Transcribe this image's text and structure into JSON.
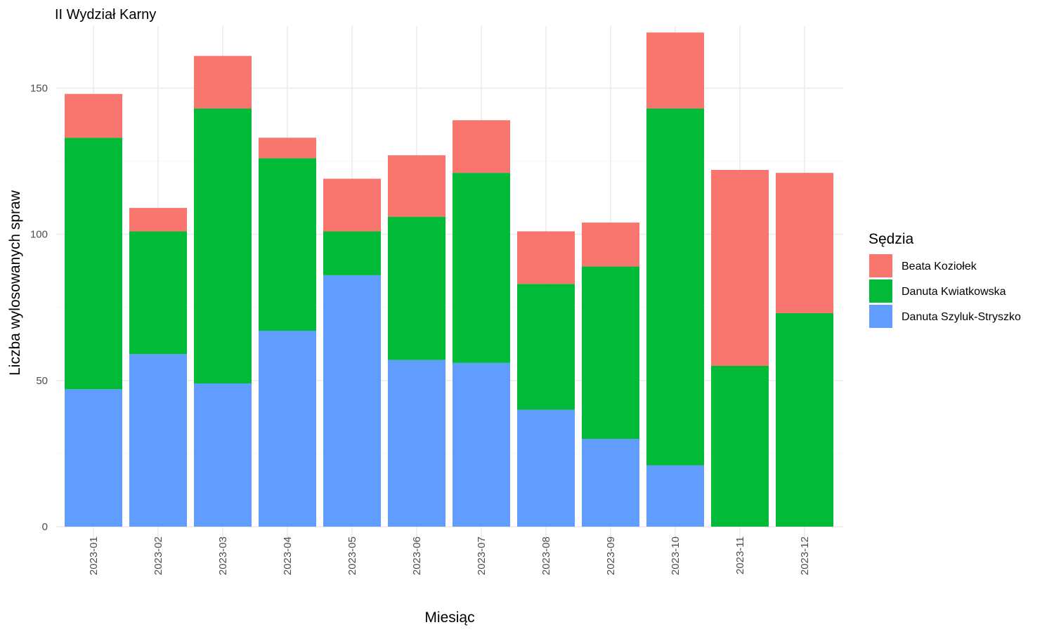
{
  "chart_data": {
    "type": "bar",
    "stacked": true,
    "title": "II Wydział Karny",
    "xlabel": "Miesiąc",
    "ylabel": "Liczba wylosowanych spraw",
    "categories": [
      "2023-01",
      "2023-02",
      "2023-03",
      "2023-04",
      "2023-05",
      "2023-06",
      "2023-07",
      "2023-08",
      "2023-09",
      "2023-10",
      "2023-11",
      "2023-12"
    ],
    "series": [
      {
        "name": "Danuta Szyluk-Stryszko",
        "color": "#619CFF",
        "values": [
          47,
          59,
          49,
          67,
          86,
          57,
          56,
          40,
          30,
          21,
          0,
          0
        ]
      },
      {
        "name": "Danuta Kwiatkowska",
        "color": "#00BA38",
        "values": [
          86,
          42,
          94,
          59,
          15,
          49,
          65,
          43,
          59,
          122,
          55,
          73
        ]
      },
      {
        "name": "Beata Koziołek",
        "color": "#F8766D",
        "values": [
          15,
          8,
          18,
          7,
          18,
          21,
          18,
          18,
          15,
          26,
          67,
          48
        ]
      }
    ],
    "ylim": [
      0,
      170
    ],
    "yticks": [
      0,
      50,
      100,
      150
    ],
    "grid": true,
    "legend": {
      "title": "Sędzia",
      "position": "right",
      "order": [
        "Beata Koziołek",
        "Danuta Kwiatkowska",
        "Danuta Szyluk-Stryszko"
      ]
    }
  }
}
